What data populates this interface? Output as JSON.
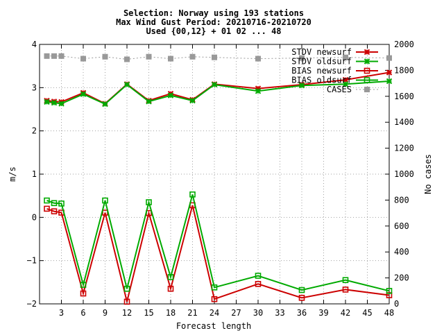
{
  "chart_data": {
    "type": "line",
    "title_lines": [
      "Selection: Norway using   193 stations",
      "Max Wind Gust   Period: 20210716-20210720",
      "Used {00,12} + 01 02 ... 48"
    ],
    "xlabel": "Forecast length",
    "ylabel": "m/s",
    "y2label": "No cases",
    "xlim": [
      0,
      48
    ],
    "ylim": [
      -2,
      4
    ],
    "y2lim": [
      0,
      2000
    ],
    "x_ticks": [
      3,
      6,
      9,
      12,
      15,
      18,
      21,
      24,
      27,
      30,
      33,
      36,
      39,
      42,
      45,
      48
    ],
    "y_ticks": [
      -2,
      -1,
      0,
      1,
      2,
      3,
      4
    ],
    "y2_ticks": [
      0,
      200,
      400,
      600,
      800,
      1000,
      1200,
      1400,
      1600,
      1800,
      2000
    ],
    "grid": true,
    "legend_position": "top-right",
    "x": [
      1,
      2,
      3,
      6,
      9,
      12,
      15,
      18,
      21,
      24,
      30,
      36,
      42,
      48
    ],
    "series": [
      {
        "name": "STDV newsurf",
        "color": "#cc0000",
        "marker": "x",
        "axis": "left",
        "values": [
          2.7,
          2.68,
          2.67,
          2.88,
          2.63,
          3.08,
          2.7,
          2.86,
          2.72,
          3.08,
          2.98,
          3.07,
          3.18,
          3.35
        ]
      },
      {
        "name": "STDV oldsurf",
        "color": "#00aa00",
        "marker": "x",
        "axis": "left",
        "values": [
          2.67,
          2.65,
          2.63,
          2.85,
          2.62,
          3.07,
          2.68,
          2.82,
          2.7,
          3.07,
          2.92,
          3.05,
          3.08,
          3.15
        ]
      },
      {
        "name": "BIAS newsurf",
        "color": "#cc0000",
        "marker": "square",
        "axis": "left",
        "values": [
          0.2,
          0.14,
          0.11,
          -1.76,
          0.11,
          -1.95,
          0.1,
          -1.65,
          0.28,
          -1.89,
          -1.54,
          -1.86,
          -1.67,
          -1.8
        ]
      },
      {
        "name": "BIAS oldsurf",
        "color": "#00aa00",
        "marker": "square",
        "axis": "left",
        "values": [
          0.39,
          0.33,
          0.32,
          -1.56,
          0.39,
          -1.65,
          0.35,
          -1.38,
          0.53,
          -1.62,
          -1.35,
          -1.68,
          -1.45,
          -1.7
        ]
      },
      {
        "name": "CASES",
        "color": "#999999",
        "marker": "filled-square",
        "axis": "right",
        "values": [
          1910,
          1910,
          1910,
          1890,
          1905,
          1885,
          1905,
          1890,
          1905,
          1900,
          1890,
          1895,
          1900,
          1895
        ]
      }
    ]
  }
}
